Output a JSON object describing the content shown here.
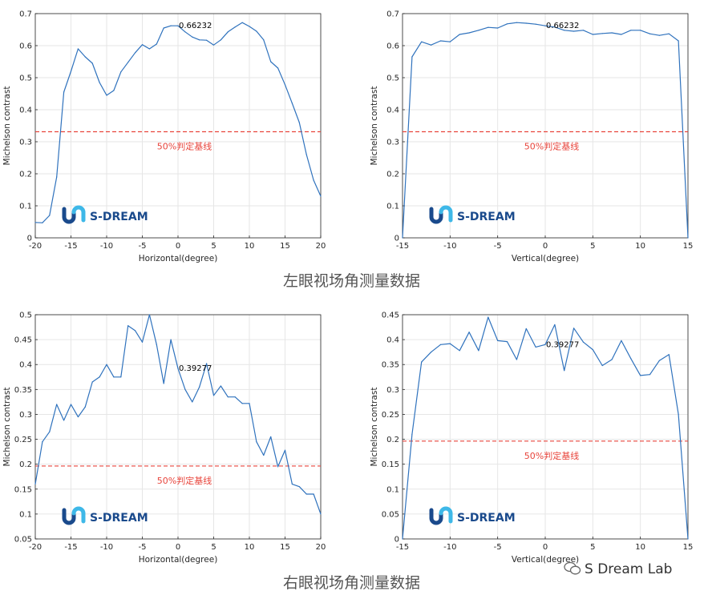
{
  "captions": {
    "left_eye": "左眼视场角测量数据",
    "right_eye": "右眼视场角测量数据"
  },
  "watermark": "S Dream Lab",
  "logo_text": "S-DREAM",
  "colors": {
    "series": "#2f72bd",
    "threshold": "#e8453c",
    "grid": "#e6e6e6",
    "axis": "#262626",
    "logo_dark": "#1a4a8c",
    "logo_light": "#3eb8e8"
  },
  "chart_data": [
    {
      "id": "left-horizontal",
      "type": "line",
      "xlabel": "Horizontal(degree)",
      "ylabel": "Michelson contrast",
      "xlim": [
        -20,
        20
      ],
      "ylim": [
        0,
        0.7
      ],
      "xticks": [
        "-20",
        "-15",
        "-10",
        "-5",
        "0",
        "5",
        "10",
        "15",
        "20"
      ],
      "yticks": [
        "0",
        "0.1",
        "0.2",
        "0.3",
        "0.4",
        "0.5",
        "0.6",
        "0.7"
      ],
      "grid": true,
      "x": [
        -20,
        -19,
        -18,
        -17,
        -16,
        -15,
        -14,
        -13,
        -12,
        -11,
        -10,
        -9,
        -8,
        -7,
        -6,
        -5,
        -4,
        -3,
        -2,
        -1,
        0,
        1,
        2,
        3,
        4,
        5,
        6,
        7,
        8,
        9,
        10,
        11,
        12,
        13,
        14,
        15,
        16,
        17,
        18,
        19,
        20
      ],
      "values": [
        0.048,
        0.047,
        0.07,
        0.19,
        0.455,
        0.52,
        0.59,
        0.565,
        0.545,
        0.485,
        0.445,
        0.46,
        0.518,
        0.548,
        0.578,
        0.603,
        0.59,
        0.605,
        0.655,
        0.662,
        0.662,
        0.643,
        0.627,
        0.618,
        0.617,
        0.602,
        0.618,
        0.643,
        0.658,
        0.672,
        0.66,
        0.645,
        0.618,
        0.55,
        0.53,
        0.478,
        0.42,
        0.36,
        0.26,
        0.18,
        0.13
      ],
      "peak_label": "0.66232",
      "peak_x": 0,
      "threshold": 0.33116,
      "threshold_label": "50%判定基线"
    },
    {
      "id": "left-vertical",
      "type": "line",
      "xlabel": "Vertical(degree)",
      "ylabel": "Michelson contrast",
      "xlim": [
        -15,
        15
      ],
      "ylim": [
        0,
        0.7
      ],
      "xticks": [
        "-15",
        "-10",
        "-5",
        "0",
        "5",
        "10",
        "15"
      ],
      "yticks": [
        "0",
        "0.1",
        "0.2",
        "0.3",
        "0.4",
        "0.5",
        "0.6",
        "0.7"
      ],
      "grid": true,
      "x": [
        -15,
        -14,
        -13,
        -12,
        -11,
        -10,
        -9,
        -8,
        -7,
        -6,
        -5,
        -4,
        -3,
        -2,
        -1,
        0,
        1,
        2,
        3,
        4,
        5,
        6,
        7,
        8,
        9,
        10,
        11,
        12,
        13,
        14,
        15
      ],
      "values": [
        0.0,
        0.565,
        0.612,
        0.602,
        0.615,
        0.612,
        0.635,
        0.64,
        0.648,
        0.657,
        0.655,
        0.668,
        0.672,
        0.67,
        0.667,
        0.662,
        0.658,
        0.648,
        0.645,
        0.648,
        0.635,
        0.638,
        0.64,
        0.635,
        0.648,
        0.648,
        0.637,
        0.632,
        0.637,
        0.615,
        0.0
      ],
      "peak_label": "0.66232",
      "peak_x": 0,
      "threshold": 0.33116,
      "threshold_label": "50%判定基线"
    },
    {
      "id": "right-horizontal",
      "type": "line",
      "xlabel": "Horizontal(degree)",
      "ylabel": "Michelson contrast",
      "xlim": [
        -20,
        20
      ],
      "ylim": [
        0.05,
        0.5
      ],
      "xticks": [
        "-20",
        "-15",
        "-10",
        "-5",
        "0",
        "5",
        "10",
        "15",
        "20"
      ],
      "yticks": [
        "0.05",
        "0.1",
        "0.15",
        "0.2",
        "0.25",
        "0.3",
        "0.35",
        "0.4",
        "0.45",
        "0.5"
      ],
      "grid": true,
      "x": [
        -20,
        -19,
        -18,
        -17,
        -16,
        -15,
        -14,
        -13,
        -12,
        -11,
        -10,
        -9,
        -8,
        -7,
        -6,
        -5,
        -4,
        -3,
        -2,
        -1,
        0,
        1,
        2,
        3,
        4,
        5,
        6,
        7,
        8,
        9,
        10,
        11,
        12,
        13,
        14,
        15,
        16,
        17,
        18,
        19,
        20
      ],
      "values": [
        0.16,
        0.245,
        0.265,
        0.32,
        0.288,
        0.32,
        0.295,
        0.315,
        0.365,
        0.375,
        0.4,
        0.375,
        0.375,
        0.478,
        0.468,
        0.445,
        0.5,
        0.44,
        0.362,
        0.45,
        0.392,
        0.35,
        0.325,
        0.355,
        0.402,
        0.338,
        0.357,
        0.335,
        0.335,
        0.322,
        0.322,
        0.245,
        0.218,
        0.255,
        0.195,
        0.228,
        0.16,
        0.155,
        0.14,
        0.14,
        0.1
      ],
      "peak_label": "0.39277",
      "peak_x": 0,
      "threshold": 0.196385,
      "threshold_label": "50%判定基线"
    },
    {
      "id": "right-vertical",
      "type": "line",
      "xlabel": "Vertical(degree)",
      "ylabel": "Michelson contrast",
      "xlim": [
        -15,
        15
      ],
      "ylim": [
        0,
        0.45
      ],
      "xticks": [
        "-15",
        "-10",
        "-5",
        "0",
        "5",
        "10",
        "15"
      ],
      "yticks": [
        "0",
        "0.05",
        "0.1",
        "0.15",
        "0.2",
        "0.25",
        "0.3",
        "0.35",
        "0.4",
        "0.45"
      ],
      "grid": true,
      "x": [
        -15,
        -14,
        -13,
        -12,
        -11,
        -10,
        -9,
        -8,
        -7,
        -6,
        -5,
        -4,
        -3,
        -2,
        -1,
        0,
        1,
        2,
        3,
        4,
        5,
        6,
        7,
        8,
        9,
        10,
        11,
        12,
        13,
        14,
        15
      ],
      "values": [
        0.0,
        0.21,
        0.355,
        0.375,
        0.39,
        0.392,
        0.378,
        0.415,
        0.378,
        0.445,
        0.398,
        0.396,
        0.36,
        0.422,
        0.385,
        0.39,
        0.43,
        0.338,
        0.423,
        0.395,
        0.38,
        0.348,
        0.36,
        0.398,
        0.362,
        0.328,
        0.33,
        0.358,
        0.37,
        0.25,
        0.0
      ],
      "peak_label": "0.39277",
      "peak_x": 0,
      "threshold": 0.196385,
      "threshold_label": "50%判定基线"
    }
  ]
}
